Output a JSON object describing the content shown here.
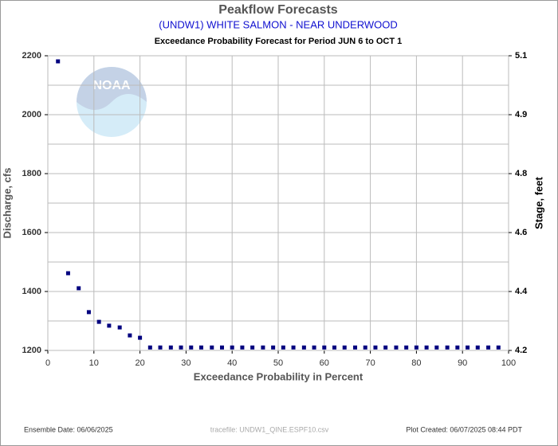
{
  "chart_data": {
    "type": "scatter",
    "title": "Peakflow Forecasts",
    "subtitle": "(UNDW1) WHITE SALMON - NEAR UNDERWOOD",
    "period": "Exceedance Probability Forecast for Period JUN 6 to OCT 1",
    "xlabel": "Exceedance Probability in Percent",
    "ylabel": "Discharge, cfs",
    "y2label": "Stage, feet",
    "logo": "NOAA",
    "footer_left": "Ensemble Date: 06/06/2025",
    "footer_center": "tracefile: UNDW1_QINE.ESPF10.csv",
    "footer_right": "Plot Created: 06/07/2025 08:44 PDT",
    "color": "#00007f",
    "grid": true,
    "xlim": [
      0,
      100
    ],
    "xticks": [
      0,
      10,
      20,
      30,
      40,
      50,
      60,
      70,
      80,
      90,
      100
    ],
    "ylim": [
      1200,
      2200
    ],
    "yticks": [
      1200,
      1400,
      1600,
      1800,
      2000,
      2200
    ],
    "y2ticks": [
      4.2,
      4.4,
      4.6,
      4.8,
      4.9,
      5.1
    ],
    "x": [
      2.2,
      4.4,
      6.7,
      8.9,
      11.1,
      13.3,
      15.6,
      17.8,
      20.0,
      22.2,
      24.4,
      26.7,
      28.9,
      31.1,
      33.3,
      35.6,
      37.8,
      40.0,
      42.2,
      44.4,
      46.7,
      48.9,
      51.1,
      53.3,
      55.6,
      57.8,
      60.0,
      62.2,
      64.4,
      66.7,
      68.9,
      71.1,
      73.3,
      75.6,
      77.8,
      80.0,
      82.2,
      84.4,
      86.7,
      88.9,
      91.1,
      93.3,
      95.6,
      97.8
    ],
    "values": [
      2181,
      1462,
      1411,
      1330,
      1297,
      1284,
      1278,
      1251,
      1243,
      1210,
      1210,
      1210,
      1210,
      1210,
      1210,
      1210,
      1210,
      1210,
      1210,
      1210,
      1210,
      1210,
      1210,
      1210,
      1210,
      1210,
      1210,
      1210,
      1210,
      1210,
      1210,
      1210,
      1210,
      1210,
      1210,
      1210,
      1210,
      1210,
      1210,
      1210,
      1210,
      1210,
      1210,
      1210
    ]
  }
}
